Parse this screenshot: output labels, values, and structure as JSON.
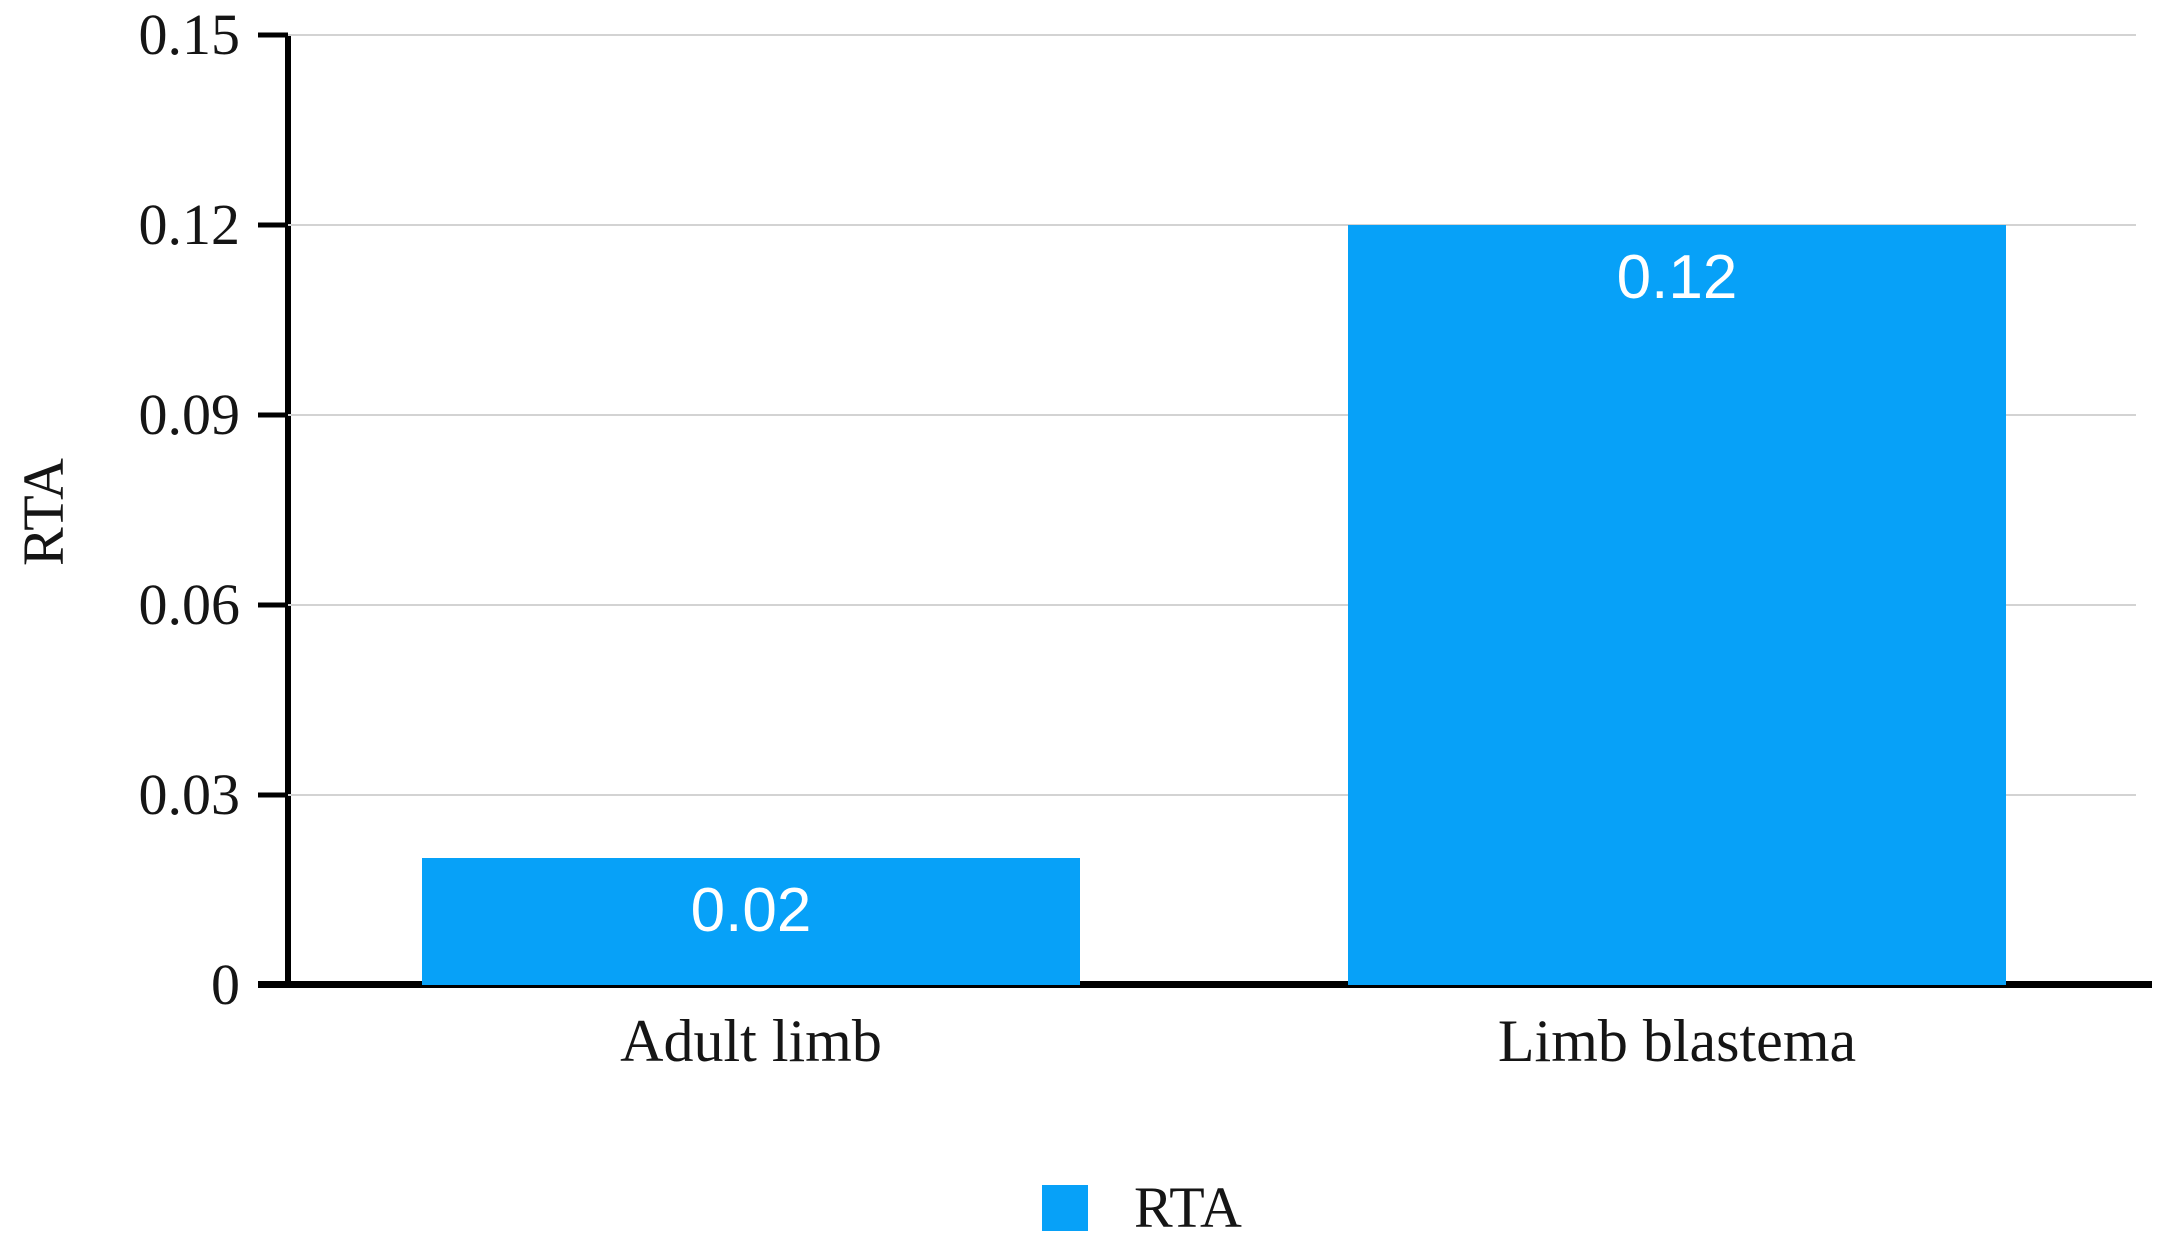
{
  "chart_data": {
    "type": "bar",
    "title": "",
    "categories": [
      "Adult limb",
      "Limb blastema"
    ],
    "series": [
      {
        "name": "RTA",
        "values": [
          0.02,
          0.12
        ],
        "bar_labels": [
          "0.02",
          "0.12"
        ]
      }
    ],
    "xlabel": "",
    "ylabel": "RTA",
    "ylim": [
      0,
      0.15
    ],
    "yticks": [
      "0",
      "0.03",
      "0.06",
      "0.09",
      "0.12",
      "0.15"
    ],
    "grid": "horizontal-on",
    "legend": {
      "position": "bottom-center",
      "entries": [
        "RTA"
      ]
    },
    "colors": {
      "bar": "#07a1f8",
      "gridline": "#d3d3d3",
      "axis": "#000000",
      "value_label": "#ffffff",
      "text": "#151515"
    }
  }
}
